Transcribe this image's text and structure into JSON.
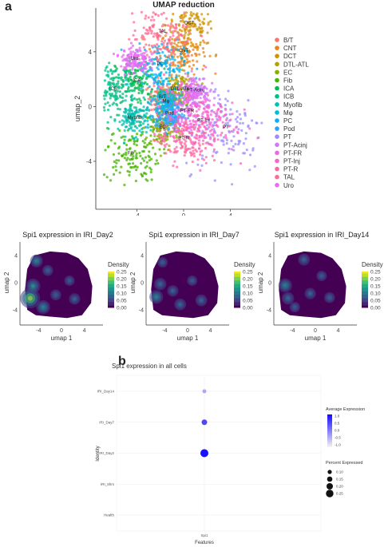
{
  "panel_a_label": "a",
  "panel_b_label": "b",
  "chart_data": [
    {
      "type": "scatter",
      "title": "UMAP reduction",
      "xlabel": "umap_1",
      "ylabel": "umap_2",
      "xlim": [
        -7.5,
        7.5
      ],
      "ylim": [
        -7.5,
        7.2
      ],
      "xticks": [
        -4,
        0,
        4
      ],
      "yticks": [
        -4,
        0,
        4
      ],
      "legend_position": "right",
      "clusters": [
        {
          "name": "B/T",
          "color": "#F8766D",
          "label_at": [
            -1.8,
            0.6
          ]
        },
        {
          "name": "CNT",
          "color": "#E7851E",
          "label_at": [
            0.0,
            4.0
          ]
        },
        {
          "name": "DCT",
          "color": "#D09400",
          "label_at": [
            0.5,
            6.0
          ]
        },
        {
          "name": "DTL-ATL",
          "color": "#B2A100",
          "label_at": [
            -0.3,
            1.2
          ]
        },
        {
          "name": "EC",
          "color": "#89AC00",
          "label_at": [
            -1.8,
            -1.6
          ]
        },
        {
          "name": "Fib",
          "color": "#45B500",
          "label_at": [
            -4.5,
            -3.5
          ]
        },
        {
          "name": "ICA",
          "color": "#00BC51",
          "label_at": [
            -4.0,
            1.8
          ]
        },
        {
          "name": "ICB",
          "color": "#00C087",
          "label_at": [
            -6.0,
            1.2
          ]
        },
        {
          "name": "Myofib",
          "color": "#00C0B2",
          "label_at": [
            -4.2,
            -0.9
          ]
        },
        {
          "name": "Mφ",
          "color": "#00BCD6",
          "label_at": [
            -1.5,
            0.3
          ]
        },
        {
          "name": "PC",
          "color": "#00B3F2",
          "label_at": [
            -2.0,
            3.0
          ]
        },
        {
          "name": "Pod",
          "color": "#29A3FF",
          "label_at": [
            -1.2,
            -0.6
          ]
        },
        {
          "name": "PT",
          "color": "#9C8DFF",
          "label_at": [
            3.6,
            -1.6
          ]
        },
        {
          "name": "PT-Acinj",
          "color": "#D277FF",
          "label_at": [
            1.0,
            1.1
          ]
        },
        {
          "name": "PT-FR",
          "color": "#F166E8",
          "label_at": [
            0.3,
            -0.4
          ]
        },
        {
          "name": "PT-Inj",
          "color": "#FF61C7",
          "label_at": [
            1.7,
            -1.1
          ]
        },
        {
          "name": "PT-R",
          "color": "#FF689E",
          "label_at": [
            0.0,
            -2.4
          ]
        },
        {
          "name": "TAL",
          "color": "#FF6C91",
          "label_at": [
            -1.8,
            5.4
          ]
        },
        {
          "name": "Uro",
          "color": "#E76BF3",
          "label_at": [
            -4.2,
            3.4
          ]
        }
      ],
      "legend_entries": [
        "B/T",
        "CNT",
        "DCT",
        "DTL-ATL",
        "EC",
        "Fib",
        "ICA",
        "ICB",
        "Myofib",
        "Mφ",
        "PC",
        "Pod",
        "PT",
        "PT-Acinj",
        "PT-FR",
        "PT-Inj",
        "PT-R",
        "TAL",
        "Uro"
      ],
      "legend_colors": [
        "#F8766D",
        "#E7851E",
        "#D09400",
        "#B2A100",
        "#89AC00",
        "#45B500",
        "#00BC51",
        "#00C087",
        "#00C0B2",
        "#00BCD6",
        "#00B3F2",
        "#29A3FF",
        "#9C8DFF",
        "#D277FF",
        "#F166E8",
        "#FF61C7",
        "#FF689E",
        "#FF6C91",
        "#E76BF3"
      ]
    },
    {
      "type": "heatmap",
      "title": "Spi1 expression in IRI_Day2",
      "xlabel": "umap 1",
      "ylabel": "umap 2",
      "legend_title": "Density",
      "legend_ticks": [
        "0.25",
        "0.20",
        "0.15",
        "0.10",
        "0.05",
        "0.00"
      ],
      "xticks": [
        "-4",
        "0",
        "4"
      ],
      "yticks": [
        "4",
        "0",
        "-4"
      ],
      "hotspots": [
        [
          -5.5,
          -2.3,
          0.25
        ],
        [
          -5.0,
          -0.5,
          0.14
        ],
        [
          -3.2,
          -3.6,
          0.12
        ],
        [
          -4.4,
          3.2,
          0.1
        ],
        [
          -2.4,
          1.8,
          0.06
        ],
        [
          2.3,
          -2.4,
          0.07
        ],
        [
          -1.0,
          -1.8,
          0.06
        ],
        [
          1.4,
          0.3,
          0.05
        ]
      ]
    },
    {
      "type": "heatmap",
      "title": "Spi1 expression in IRI_Day7",
      "xlabel": "umap 1",
      "ylabel": "umap 2",
      "legend_title": "Density",
      "legend_ticks": [
        "0.25",
        "0.20",
        "0.15",
        "0.10",
        "0.05",
        "0.00"
      ],
      "xticks": [
        "-4",
        "0",
        "4"
      ],
      "yticks": [
        "4",
        "0",
        "-4"
      ],
      "hotspots": [
        [
          -5.5,
          -2.1,
          0.12
        ],
        [
          -4.8,
          -0.2,
          0.09
        ],
        [
          -1.3,
          -3.2,
          0.08
        ],
        [
          -2.6,
          -1.2,
          0.07
        ],
        [
          0.8,
          0.3,
          0.05
        ],
        [
          2.4,
          -2.6,
          0.08
        ],
        [
          -4.4,
          3.0,
          0.05
        ]
      ]
    },
    {
      "type": "heatmap",
      "title": "Spi1 expression in IRI_Day14",
      "xlabel": "umap 1",
      "ylabel": "umap 2",
      "legend_title": "Density",
      "legend_ticks": [
        "0.25",
        "0.20",
        "0.15",
        "0.10",
        "0.05",
        "0.00"
      ],
      "xticks": [
        "-4",
        "0",
        "4"
      ],
      "yticks": [
        "4",
        "0",
        "-4"
      ],
      "hotspots": [
        [
          -5.3,
          -0.4,
          0.12
        ],
        [
          -4.8,
          -2.3,
          0.09
        ],
        [
          -2.0,
          3.4,
          0.08
        ],
        [
          -0.9,
          -1.6,
          0.07
        ],
        [
          2.5,
          -2.2,
          0.06
        ],
        [
          1.1,
          1.0,
          0.05
        ],
        [
          -3.6,
          -3.6,
          0.05
        ]
      ]
    },
    {
      "type": "scatter",
      "subtype": "dotplot",
      "title": "Spi1 expression in all cells",
      "xlabel": "Features",
      "ylabel": "Identity",
      "categories_x": [
        "Spi1"
      ],
      "categories_y": [
        "IRI_Day14",
        "IRI_Day7",
        "IRI_Day2",
        "IRI_6hrs",
        "Health"
      ],
      "points": [
        {
          "identity": "IRI_Day14",
          "avg_expression": -0.4,
          "pct_expressed": 0.09
        },
        {
          "identity": "IRI_Day7",
          "avg_expression": 0.5,
          "pct_expressed": 0.16
        },
        {
          "identity": "IRI_Day2",
          "avg_expression": 1.0,
          "pct_expressed": 0.27
        },
        {
          "identity": "IRI_6hrs",
          "avg_expression": -1.0,
          "pct_expressed": 0.0
        },
        {
          "identity": "Health",
          "avg_expression": -1.0,
          "pct_expressed": 0.0
        }
      ],
      "color_legend_title": "Average Expression",
      "color_legend_ticks": [
        "1.0",
        "0.5",
        "0.0",
        "-0.5",
        "-1.0"
      ],
      "color_low": "#e8e8ee",
      "color_high": "#1a10ff",
      "size_legend_title": "Percent Expressed",
      "size_legend_ticks": [
        "0.10",
        "0.15",
        "0.20",
        "0.25"
      ],
      "size_legend_values": [
        0.1,
        0.15,
        0.2,
        0.25
      ]
    }
  ]
}
